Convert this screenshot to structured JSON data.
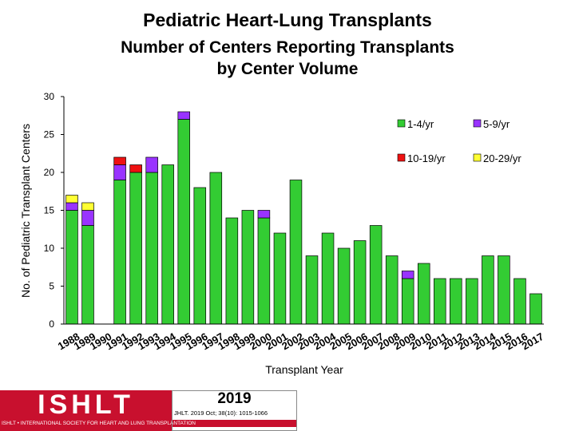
{
  "title": "Pediatric Heart-Lung Transplants",
  "subtitle_line1": "Number of Centers Reporting Transplants",
  "subtitle_line2": "by Center Volume",
  "chart_data": {
    "type": "bar",
    "stacked": true,
    "title": "Pediatric Heart-Lung Transplants",
    "subtitle": "Number of Centers Reporting Transplants by Center Volume",
    "xlabel": "Transplant Year",
    "ylabel": "No. of Pediatric Transplant Centers",
    "ylim": [
      0,
      30
    ],
    "yticks": [
      0,
      5,
      10,
      15,
      20,
      25,
      30
    ],
    "grid": false,
    "legend_position": "top-right",
    "categories": [
      "1988",
      "1989",
      "1990",
      "1991",
      "1992",
      "1993",
      "1994",
      "1995",
      "1996",
      "1997",
      "1998",
      "1999",
      "2000",
      "2001",
      "2002",
      "2003",
      "2004",
      "2005",
      "2006",
      "2007",
      "2008",
      "2009",
      "2010",
      "2011",
      "2012",
      "2013",
      "2014",
      "2015",
      "2016",
      "2017"
    ],
    "series": [
      {
        "name": "1-4/yr",
        "color": "#33cc33",
        "values": [
          15,
          13,
          0,
          19,
          20,
          20,
          21,
          27,
          18,
          20,
          14,
          15,
          14,
          12,
          19,
          9,
          12,
          10,
          11,
          13,
          9,
          6,
          8,
          6,
          6,
          6,
          9,
          9,
          6,
          4
        ]
      },
      {
        "name": "5-9/yr",
        "color": "#9933ff",
        "values": [
          1,
          2,
          0,
          2,
          0,
          2,
          0,
          1,
          0,
          0,
          0,
          0,
          1,
          0,
          0,
          0,
          0,
          0,
          0,
          0,
          0,
          1,
          0,
          0,
          0,
          0,
          0,
          0,
          0,
          0
        ]
      },
      {
        "name": "10-19/yr",
        "color": "#ee1111",
        "values": [
          0,
          0,
          0,
          1,
          1,
          0,
          0,
          0,
          0,
          0,
          0,
          0,
          0,
          0,
          0,
          0,
          0,
          0,
          0,
          0,
          0,
          0,
          0,
          0,
          0,
          0,
          0,
          0,
          0,
          0
        ]
      },
      {
        "name": "20-29/yr",
        "color": "#ffff33",
        "values": [
          1,
          1,
          0,
          0,
          0,
          0,
          0,
          0,
          0,
          0,
          0,
          0,
          0,
          0,
          0,
          0,
          0,
          0,
          0,
          0,
          0,
          0,
          0,
          0,
          0,
          0,
          0,
          0,
          0,
          0
        ]
      }
    ]
  },
  "logo": {
    "org": "ISHLT",
    "band_text": "ISHLT • INTERNATIONAL SOCIETY FOR HEART AND LUNG TRANSPLANTATION",
    "year": "2019",
    "citation": "JHLT. 2019 Oct; 38(10): 1015-1066"
  }
}
